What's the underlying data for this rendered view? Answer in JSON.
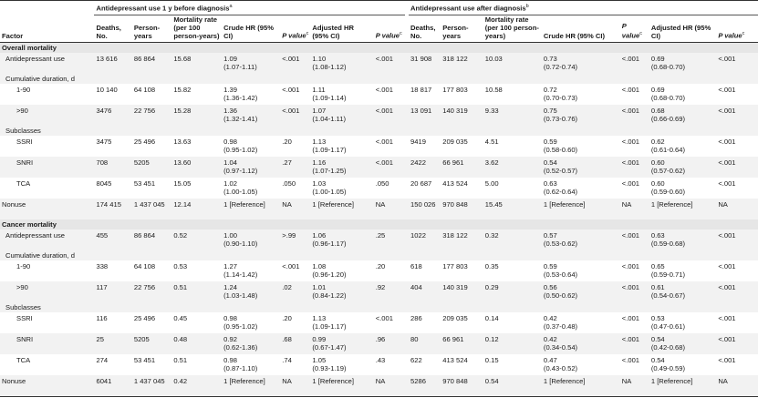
{
  "header": {
    "group1": "Antidepressant use 1 y before diagnosis",
    "group1_sup": "a",
    "group2": "Antidepressant use after diagnosis",
    "group2_sup": "b",
    "cols": {
      "factor": "Factor",
      "deaths": "Deaths, No.",
      "person_years": "Person-years",
      "mortality": "Mortality rate (per 100 person-years)",
      "crude": "Crude HR (95% CI)",
      "p": "P value",
      "p_sup": "c",
      "adjusted": "Adjusted HR (95% CI)"
    }
  },
  "sections": [
    {
      "title": "Overall mortality",
      "rows": [
        {
          "label": "Antidepressant use",
          "indent": 1,
          "shade": true,
          "b": {
            "deaths": "13 616",
            "py": "86 864",
            "rate": "15.68",
            "crude": "1.09",
            "crude_ci": "(1.07-1.11)",
            "p1": "<.001",
            "adj": "1.10",
            "adj_ci": "(1.08-1.12)",
            "p2": "<.001"
          },
          "a": {
            "deaths": "31 908",
            "py": "318 122",
            "rate": "10.03",
            "crude": "0.73",
            "crude_ci": "(0.72-0.74)",
            "p1": "<.001",
            "adj": "0.69",
            "adj_ci": "(0.68-0.70)",
            "p2": "<.001"
          }
        },
        {
          "subhead": "Cumulative duration, d"
        },
        {
          "label": "1-90",
          "indent": 2,
          "b": {
            "deaths": "10 140",
            "py": "64 108",
            "rate": "15.82",
            "crude": "1.39",
            "crude_ci": "(1.36-1.42)",
            "p1": "<.001",
            "adj": "1.11",
            "adj_ci": "(1.09-1.14)",
            "p2": "<.001"
          },
          "a": {
            "deaths": "18 817",
            "py": "177 803",
            "rate": "10.58",
            "crude": "0.72",
            "crude_ci": "(0.70-0.73)",
            "p1": "<.001",
            "adj": "0.69",
            "adj_ci": "(0.68-0.70)",
            "p2": "<.001"
          }
        },
        {
          "label": ">90",
          "indent": 2,
          "shade": true,
          "b": {
            "deaths": "3476",
            "py": "22 756",
            "rate": "15.28",
            "crude": "1.36",
            "crude_ci": "(1.32-1.41)",
            "p1": "<.001",
            "adj": "1.07",
            "adj_ci": "(1.04-1.11)",
            "p2": "<.001"
          },
          "a": {
            "deaths": "13 091",
            "py": "140 319",
            "rate": "9.33",
            "crude": "0.75",
            "crude_ci": "(0.73-0.76)",
            "p1": "<.001",
            "adj": "0.68",
            "adj_ci": "(0.66-0.69)",
            "p2": "<.001"
          }
        },
        {
          "subhead": "Subclasses"
        },
        {
          "label": "SSRI",
          "indent": 2,
          "b": {
            "deaths": "3475",
            "py": "25 496",
            "rate": "13.63",
            "crude": "0.98",
            "crude_ci": "(0.95-1.02)",
            "p1": ".20",
            "adj": "1.13",
            "adj_ci": "(1.09-1.17)",
            "p2": "<.001"
          },
          "a": {
            "deaths": "9419",
            "py": "209 035",
            "rate": "4.51",
            "crude": "0.59",
            "crude_ci": "(0.58-0.60)",
            "p1": "<.001",
            "adj": "0.62",
            "adj_ci": "(0.61-0.64)",
            "p2": "<.001"
          }
        },
        {
          "label": "SNRI",
          "indent": 2,
          "shade": true,
          "b": {
            "deaths": "708",
            "py": "5205",
            "rate": "13.60",
            "crude": "1.04",
            "crude_ci": "(0.97-1.12)",
            "p1": ".27",
            "adj": "1.16",
            "adj_ci": "(1.07-1.25)",
            "p2": "<.001"
          },
          "a": {
            "deaths": "2422",
            "py": "66 961",
            "rate": "3.62",
            "crude": "0.54",
            "crude_ci": "(0.52-0.57)",
            "p1": "<.001",
            "adj": "0.60",
            "adj_ci": "(0.57-0.62)",
            "p2": "<.001"
          }
        },
        {
          "label": "TCA",
          "indent": 2,
          "b": {
            "deaths": "8045",
            "py": "53 451",
            "rate": "15.05",
            "crude": "1.02",
            "crude_ci": "(1.00-1.05)",
            "p1": ".050",
            "adj": "1.03",
            "adj_ci": "(1.00-1.05)",
            "p2": ".050"
          },
          "a": {
            "deaths": "20 687",
            "py": "413 524",
            "rate": "5.00",
            "crude": "0.63",
            "crude_ci": "(0.62-0.64)",
            "p1": "<.001",
            "adj": "0.60",
            "adj_ci": "(0.59-0.60)",
            "p2": "<.001"
          }
        },
        {
          "label": "Nonuse",
          "indent": 0,
          "single": true,
          "shade": true,
          "b": {
            "deaths": "174 415",
            "py": "1 437 045",
            "rate": "12.14",
            "crude": "1 [Reference]",
            "crude_ci": "",
            "p1": "NA",
            "adj": "1 [Reference]",
            "adj_ci": "",
            "p2": "NA"
          },
          "a": {
            "deaths": "150 026",
            "py": "970 848",
            "rate": "15.45",
            "crude": "1 [Reference]",
            "crude_ci": "",
            "p1": "NA",
            "adj": "1 [Reference]",
            "adj_ci": "",
            "p2": "NA"
          }
        }
      ]
    },
    {
      "title": "Cancer mortality",
      "rows": [
        {
          "label": "Antidepressant use",
          "indent": 1,
          "shade": true,
          "b": {
            "deaths": "455",
            "py": "86 864",
            "rate": "0.52",
            "crude": "1.00",
            "crude_ci": "(0.90-1.10)",
            "p1": ">.99",
            "adj": "1.06",
            "adj_ci": "(0.96-1.17)",
            "p2": ".25"
          },
          "a": {
            "deaths": "1022",
            "py": "318 122",
            "rate": "0.32",
            "crude": "0.57",
            "crude_ci": "(0.53-0.62)",
            "p1": "<.001",
            "adj": "0.63",
            "adj_ci": "(0.59-0.68)",
            "p2": "<.001"
          }
        },
        {
          "subhead": "Cumulative duration, d"
        },
        {
          "label": "1-90",
          "indent": 2,
          "b": {
            "deaths": "338",
            "py": "64 108",
            "rate": "0.53",
            "crude": "1.27",
            "crude_ci": "(1.14-1.42)",
            "p1": "<.001",
            "adj": "1.08",
            "adj_ci": "(0.96-1.20)",
            "p2": ".20"
          },
          "a": {
            "deaths": "618",
            "py": "177 803",
            "rate": "0.35",
            "crude": "0.59",
            "crude_ci": "(0.53-0.64)",
            "p1": "<.001",
            "adj": "0.65",
            "adj_ci": "(0.59-0.71)",
            "p2": "<.001"
          }
        },
        {
          "label": ">90",
          "indent": 2,
          "shade": true,
          "b": {
            "deaths": "117",
            "py": "22 756",
            "rate": "0.51",
            "crude": "1.24",
            "crude_ci": "(1.03-1.48)",
            "p1": ".02",
            "adj": "1.01",
            "adj_ci": "(0.84-1.22)",
            "p2": ".92"
          },
          "a": {
            "deaths": "404",
            "py": "140 319",
            "rate": "0.29",
            "crude": "0.56",
            "crude_ci": "(0.50-0.62)",
            "p1": "<.001",
            "adj": "0.61",
            "adj_ci": "(0.54-0.67)",
            "p2": "<.001"
          }
        },
        {
          "subhead": "Subclasses"
        },
        {
          "label": "SSRI",
          "indent": 2,
          "b": {
            "deaths": "116",
            "py": "25 496",
            "rate": "0.45",
            "crude": "0.98",
            "crude_ci": "(0.95-1.02)",
            "p1": ".20",
            "adj": "1.13",
            "adj_ci": "(1.09-1.17)",
            "p2": "<.001"
          },
          "a": {
            "deaths": "286",
            "py": "209 035",
            "rate": "0.14",
            "crude": "0.42",
            "crude_ci": "(0.37-0.48)",
            "p1": "<.001",
            "adj": "0.53",
            "adj_ci": "(0.47-0.61)",
            "p2": "<.001"
          }
        },
        {
          "label": "SNRI",
          "indent": 2,
          "shade": true,
          "b": {
            "deaths": "25",
            "py": "5205",
            "rate": "0.48",
            "crude": "0.92",
            "crude_ci": "(0.62-1.36)",
            "p1": ".68",
            "adj": "0.99",
            "adj_ci": "(0.67-1.47)",
            "p2": ".96"
          },
          "a": {
            "deaths": "80",
            "py": "66 961",
            "rate": "0.12",
            "crude": "0.42",
            "crude_ci": "(0.34-0.54)",
            "p1": "<.001",
            "adj": "0.54",
            "adj_ci": "(0.42-0.68)",
            "p2": "<.001"
          }
        },
        {
          "label": "TCA",
          "indent": 2,
          "b": {
            "deaths": "274",
            "py": "53 451",
            "rate": "0.51",
            "crude": "0.98",
            "crude_ci": "(0.87-1.10)",
            "p1": ".74",
            "adj": "1.05",
            "adj_ci": "(0.93-1.19)",
            "p2": ".43"
          },
          "a": {
            "deaths": "622",
            "py": "413 524",
            "rate": "0.15",
            "crude": "0.47",
            "crude_ci": "(0.43-0.52)",
            "p1": "<.001",
            "adj": "0.54",
            "adj_ci": "(0.49-0.59)",
            "p2": "<.001"
          }
        },
        {
          "label": "Nonuse",
          "indent": 0,
          "single": true,
          "shade": true,
          "last": true,
          "b": {
            "deaths": "6041",
            "py": "1 437 045",
            "rate": "0.42",
            "crude": "1 [Reference]",
            "crude_ci": "",
            "p1": "NA",
            "adj": "1 [Reference]",
            "adj_ci": "",
            "p2": "NA"
          },
          "a": {
            "deaths": "5286",
            "py": "970 848",
            "rate": "0.54",
            "crude": "1 [Reference]",
            "crude_ci": "",
            "p1": "NA",
            "adj": "1 [Reference]",
            "adj_ci": "",
            "p2": "NA"
          }
        }
      ]
    }
  ]
}
